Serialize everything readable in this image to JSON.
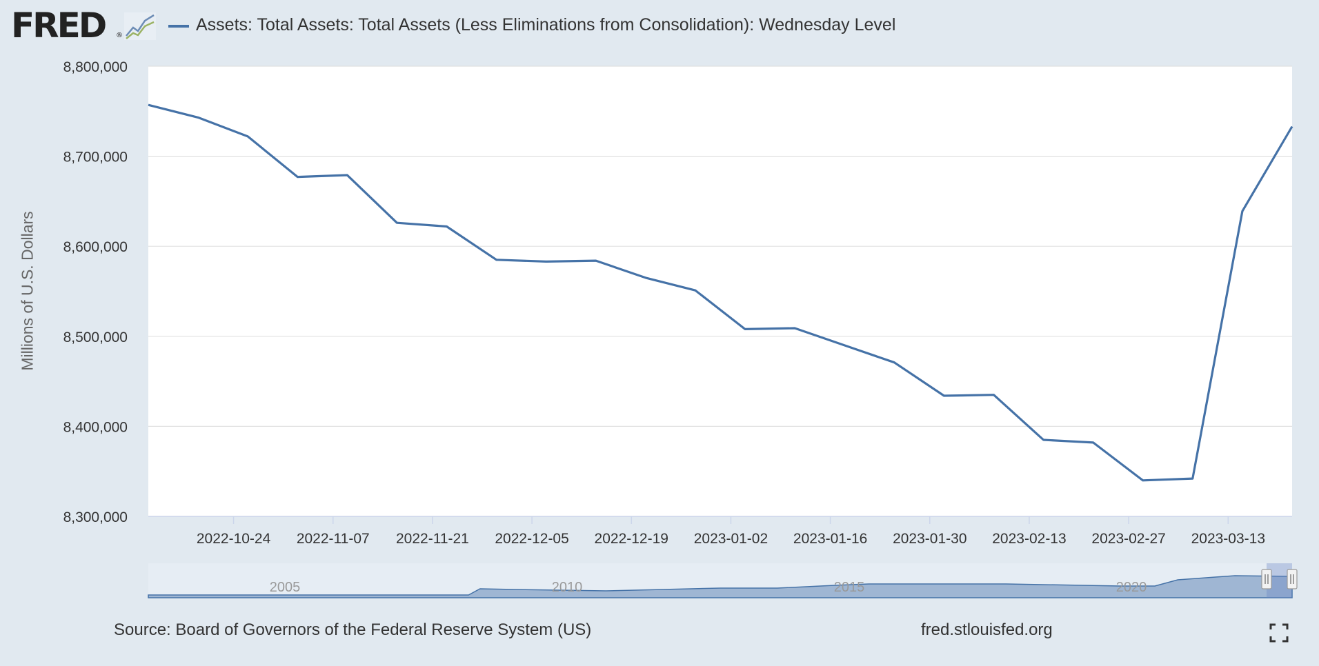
{
  "header": {
    "logo_text": "FRED",
    "logo_mark": "®",
    "logo_icon": "line-graph-icon",
    "series_label": "Assets: Total Assets: Total Assets (Less Eliminations from Consolidation): Wednesday Level"
  },
  "colors": {
    "background": "#e1e9f0",
    "plot_background": "#ffffff",
    "series": "#4572a7",
    "navigator_fill": "#9fb6d3"
  },
  "chart_data": {
    "type": "line",
    "title": "",
    "xlabel": "",
    "ylabel": "Millions of U.S. Dollars",
    "ylim": [
      8300000,
      8800000
    ],
    "xlim": [
      "2022-10-12",
      "2023-03-22"
    ],
    "y_ticks": [
      8300000,
      8400000,
      8500000,
      8600000,
      8700000,
      8800000
    ],
    "y_tick_labels": [
      "8,300,000",
      "8,400,000",
      "8,500,000",
      "8,600,000",
      "8,700,000",
      "8,800,000"
    ],
    "x_ticks": [
      "2022-10-24",
      "2022-11-07",
      "2022-11-21",
      "2022-12-05",
      "2022-12-19",
      "2023-01-02",
      "2023-01-16",
      "2023-01-30",
      "2023-02-13",
      "2023-02-27",
      "2023-03-13"
    ],
    "grid": true,
    "legend": "top",
    "series": [
      {
        "name": "Assets: Total Assets: Total Assets (Less Eliminations from Consolidation): Wednesday Level",
        "x": [
          "2022-10-12",
          "2022-10-19",
          "2022-10-26",
          "2022-11-02",
          "2022-11-09",
          "2022-11-16",
          "2022-11-23",
          "2022-11-30",
          "2022-12-07",
          "2022-12-14",
          "2022-12-21",
          "2022-12-28",
          "2023-01-04",
          "2023-01-11",
          "2023-01-18",
          "2023-01-25",
          "2023-02-01",
          "2023-02-08",
          "2023-02-15",
          "2023-02-22",
          "2023-03-01",
          "2023-03-08",
          "2023-03-15",
          "2023-03-22"
        ],
        "values": [
          8757000,
          8743000,
          8722000,
          8677000,
          8679000,
          8626000,
          8622000,
          8585000,
          8583000,
          8584000,
          8565000,
          8551000,
          8508000,
          8509000,
          8490000,
          8471000,
          8434000,
          8435000,
          8385000,
          8382000,
          8340000,
          8342000,
          8639000,
          8733000
        ]
      }
    ],
    "navigator": {
      "year_labels": [
        "2005",
        "2010",
        "2015",
        "2020"
      ]
    }
  },
  "footer": {
    "source": "Source: Board of Governors of the Federal Reserve System (US)",
    "url": "fred.stlouisfed.org",
    "fullscreen_icon": "fullscreen-icon"
  }
}
